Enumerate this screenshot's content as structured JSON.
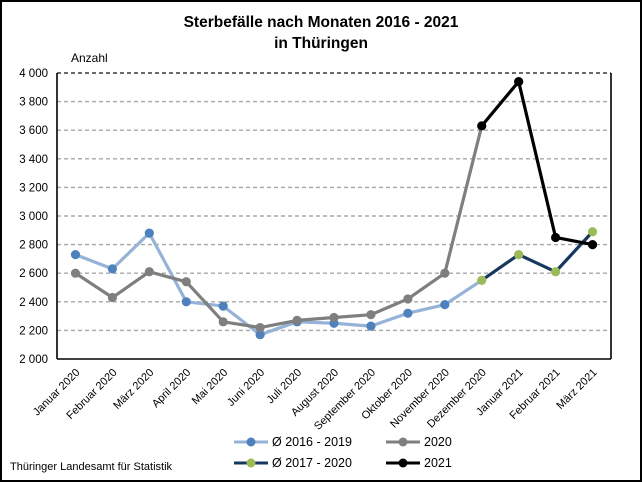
{
  "title": {
    "line1": "Sterbefälle nach Monaten 2016 - 2021",
    "line2": "in Thüringen"
  },
  "y_axis_label": "Anzahl",
  "footer": "Thüringer Landesamt für Statistik",
  "colors": {
    "background": "#FFFFFF",
    "frame_border": "#000000",
    "axis": "#000000",
    "grid": "#A8A8A8",
    "grid_top": "#3A3A3A",
    "blue_line": "#95B3D7",
    "blue_marker": "#4F81BD",
    "gray": "#7F7F7F",
    "navy_line": "#17375E",
    "green_marker": "#9BBB59",
    "black": "#000000"
  },
  "chart_data": {
    "type": "line",
    "title": "Sterbefälle nach Monaten 2016 - 2021 in Thüringen",
    "xlabel": "",
    "ylabel": "Anzahl",
    "ylim": [
      2000,
      4000
    ],
    "ytick_step": 200,
    "ytick_labels": [
      "4 000",
      "3 800",
      "3 600",
      "3 400",
      "3 200",
      "3 000",
      "2 800",
      "2 600",
      "2 400",
      "2 200",
      "2 000"
    ],
    "grid": "horizontal dashed",
    "legend_position": "bottom-center, 2 columns",
    "categories": [
      "Januar 2020",
      "Februar 2020",
      "März 2020",
      "April 2020",
      "Mai 2020",
      "Juni 2020",
      "Juli 2020",
      "August 2020",
      "September 2020",
      "Oktober 2020",
      "November 2020",
      "Dezember 2020",
      "Januar 2021",
      "Februar 2021",
      "März 2021"
    ],
    "series": [
      {
        "name": "Ø 2016 - 2019",
        "line_color": "#95B3D7",
        "marker_color": "#4F81BD",
        "start_index": 0,
        "values": [
          2730,
          2630,
          2880,
          2400,
          2370,
          2170,
          2260,
          2250,
          2230,
          2320,
          2380,
          2550
        ],
        "marker_on_last_point": false
      },
      {
        "name": "2020",
        "line_color": "#7F7F7F",
        "marker_color": "#7F7F7F",
        "start_index": 0,
        "values": [
          2600,
          2430,
          2610,
          2540,
          2260,
          2220,
          2270,
          2290,
          2310,
          2420,
          2600,
          3630
        ],
        "marker_on_last_point": false
      },
      {
        "name": "Ø 2017 - 2020",
        "line_color": "#17375E",
        "marker_color": "#9BBB59",
        "start_index": 11,
        "values": [
          2550,
          2730,
          2610,
          2890
        ],
        "marker_on_last_point": true
      },
      {
        "name": "2021",
        "line_color": "#000000",
        "marker_color": "#000000",
        "start_index": 11,
        "values": [
          3630,
          3940,
          2850,
          2800
        ],
        "marker_on_last_point": true
      }
    ]
  }
}
